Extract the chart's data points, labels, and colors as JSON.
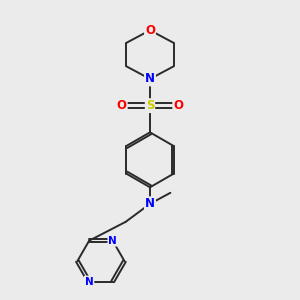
{
  "bg_color": "#ebebeb",
  "bond_color": "#2a2a2a",
  "bond_width": 1.4,
  "atom_colors": {
    "O": "#ff0000",
    "N": "#0000ff",
    "S": "#cccc00",
    "C": "#2a2a2a"
  },
  "font_size_atom": 8.5
}
